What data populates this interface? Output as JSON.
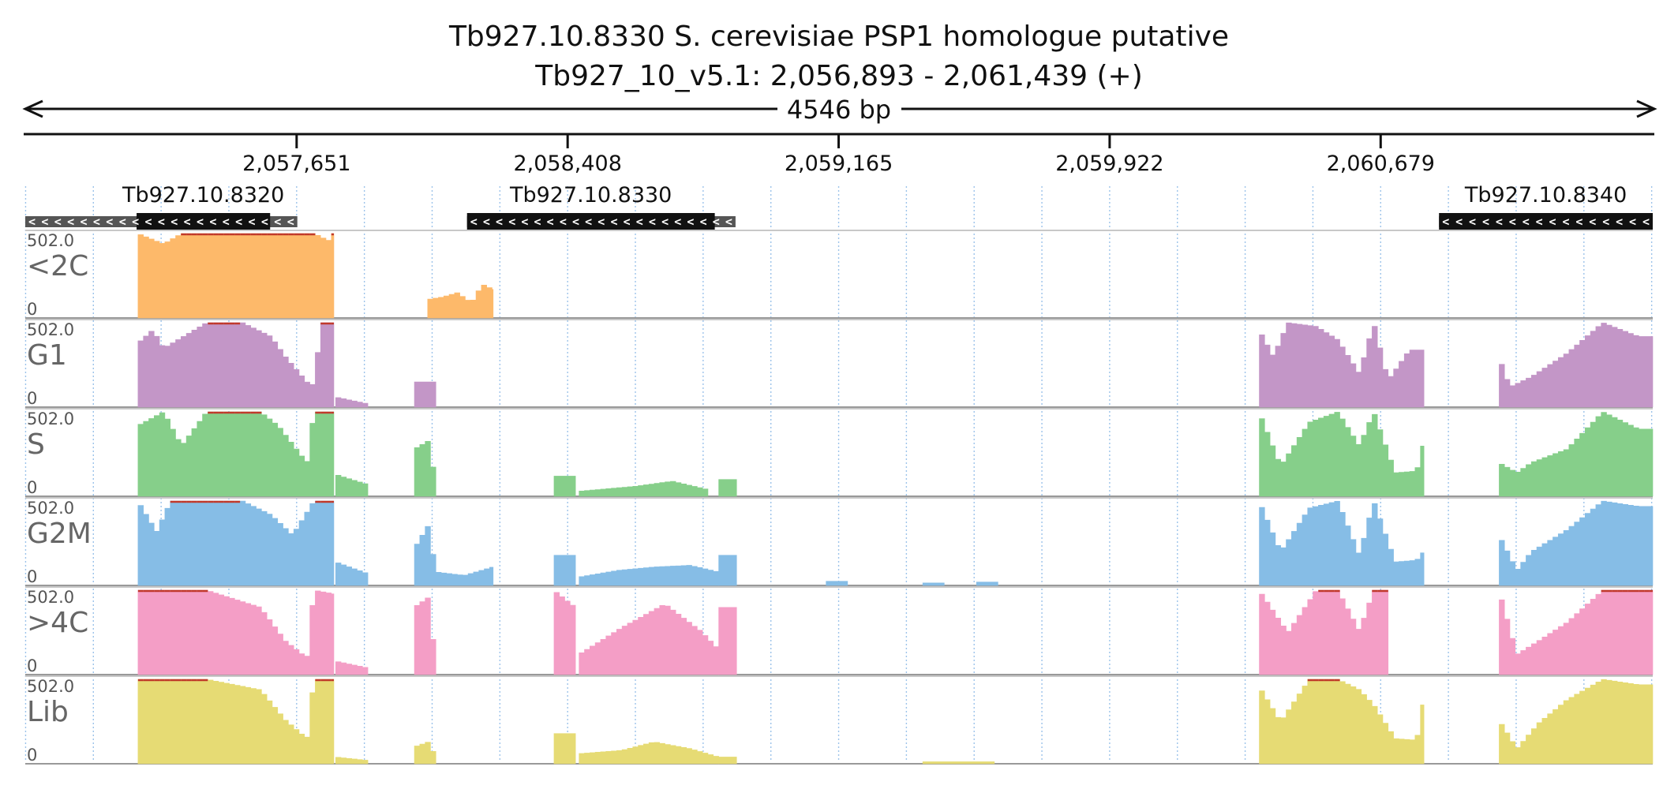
{
  "chart_data": {
    "type": "area",
    "title": "Tb927.10.8330  S. cerevisiae PSP1 homologue  putative",
    "subtitle": "Tb927_10_v5.1: 2,056,893 - 2,061,439 (+)",
    "span_label": "4546 bp",
    "xlim": [
      2056893,
      2061439
    ],
    "x_ticks": [
      {
        "value": 2057651,
        "label": "2,057,651"
      },
      {
        "value": 2058408,
        "label": "2,058,408"
      },
      {
        "value": 2059165,
        "label": "2,059,165"
      },
      {
        "value": 2059922,
        "label": "2,059,922"
      },
      {
        "value": 2060679,
        "label": "2,060,679"
      }
    ],
    "genes": [
      {
        "name": "Tb927.10.8320",
        "start": 2056893,
        "end": 2057653,
        "thick_start": 2057204,
        "thick_end": 2057577,
        "strand": "-"
      },
      {
        "name": "Tb927.10.8330",
        "start": 2058127,
        "end": 2058877,
        "thick_start": 2058127,
        "thick_end": 2058819,
        "strand": "-"
      },
      {
        "name": "Tb927.10.8340",
        "start": 2060842,
        "end": 2061439,
        "thick_start": 2060842,
        "thick_end": 2061439,
        "strand": "-"
      }
    ],
    "ylim": [
      0,
      502.0
    ],
    "ymax_label": "502.0",
    "ymin_label": "0",
    "bin_size": 15,
    "grid": true,
    "series": [
      {
        "name": "<2C",
        "color": "#fdb96a",
        "segments": [
          {
            "x": [
              2057208,
              2057280,
              2057330,
              2057400,
              2057500,
              2057600,
              2057700,
              2057740,
              2057750,
              2057755
            ],
            "y": [
              502,
              440,
              502,
              502,
              502,
              502,
              502,
              460,
              502,
              502
            ]
          },
          {
            "x": [
              2058017,
              2058060,
              2058100,
              2058140,
              2058170,
              2058200
            ],
            "y": [
              110,
              125,
              150,
              90,
              200,
              170
            ]
          }
        ]
      },
      {
        "name": "G1",
        "color": "#c396c7",
        "segments": [
          {
            "x": [
              2057208,
              2057250,
              2057280,
              2057400,
              2057500,
              2057580,
              2057620,
              2057680,
              2057700,
              2057720,
              2057755
            ],
            "y": [
              380,
              460,
              350,
              502,
              502,
              420,
              300,
              150,
              130,
              502,
              502
            ]
          },
          {
            "x": [
              2057760,
              2057850
            ],
            "y": [
              60,
              20
            ]
          },
          {
            "x": [
              2057980,
              2058040
            ],
            "y": [
              150,
              150
            ]
          },
          {
            "x": [
              2060340,
              2060380,
              2060420,
              2060500,
              2060560,
              2060620,
              2060660,
              2060700,
              2060760,
              2060800
            ],
            "y": [
              460,
              300,
              502,
              480,
              400,
              200,
              502,
              160,
              340,
              340
            ]
          },
          {
            "x": [
              2061010,
              2061040,
              2061100,
              2061200,
              2061300,
              2061400,
              2061439
            ],
            "y": [
              300,
              120,
              180,
              320,
              502,
              420,
              420
            ]
          }
        ]
      },
      {
        "name": "S",
        "color": "#86cf8a",
        "segments": [
          {
            "x": [
              2057208,
              2057280,
              2057330,
              2057400,
              2057500,
              2057550,
              2057600,
              2057680,
              2057700,
              2057755
            ],
            "y": [
              420,
              502,
              300,
              502,
              502,
              502,
              420,
              200,
              502,
              502
            ]
          },
          {
            "x": [
              2057760,
              2057850
            ],
            "y": [
              130,
              70
            ]
          },
          {
            "x": [
              2057980,
              2058020,
              2058040
            ],
            "y": [
              280,
              330,
              80
            ]
          },
          {
            "x": [
              2058370,
              2058430
            ],
            "y": [
              120,
              120
            ]
          },
          {
            "x": [
              2058440,
              2058600,
              2058700,
              2058800
            ],
            "y": [
              30,
              60,
              90,
              40
            ]
          },
          {
            "x": [
              2058830,
              2058880
            ],
            "y": [
              100,
              100
            ]
          },
          {
            "x": [
              2060340,
              2060400,
              2060480,
              2060560,
              2060620,
              2060660,
              2060720,
              2060780,
              2060800
            ],
            "y": [
              502,
              180,
              440,
              502,
              300,
              502,
              140,
              150,
              320
            ]
          },
          {
            "x": [
              2061010,
              2061060,
              2061100,
              2061200,
              2061300,
              2061400,
              2061439
            ],
            "y": [
              200,
              140,
              200,
              280,
              502,
              400,
              400
            ]
          }
        ]
      },
      {
        "name": "G2M",
        "color": "#86bde6",
        "segments": [
          {
            "x": [
              2057208,
              2057260,
              2057300,
              2057400,
              2057500,
              2057580,
              2057640,
              2057700,
              2057755
            ],
            "y": [
              502,
              320,
              502,
              502,
              502,
              420,
              300,
              502,
              502
            ]
          },
          {
            "x": [
              2057760,
              2057850
            ],
            "y": [
              140,
              70
            ]
          },
          {
            "x": [
              2057980,
              2058020,
              2058040,
              2058120,
              2058200
            ],
            "y": [
              220,
              360,
              80,
              60,
              110
            ]
          },
          {
            "x": [
              2058370,
              2058430
            ],
            "y": [
              180,
              180
            ]
          },
          {
            "x": [
              2058440,
              2058550,
              2058650,
              2058750,
              2058830
            ],
            "y": [
              50,
              90,
              110,
              120,
              80
            ]
          },
          {
            "x": [
              2058830,
              2058880
            ],
            "y": [
              180,
              180
            ]
          },
          {
            "x": [
              2059130,
              2059190
            ],
            "y": [
              25,
              25
            ]
          },
          {
            "x": [
              2059400,
              2059460
            ],
            "y": [
              15,
              15
            ]
          },
          {
            "x": [
              2059550,
              2059610
            ],
            "y": [
              20,
              20
            ]
          },
          {
            "x": [
              2060340,
              2060400,
              2060480,
              2060560,
              2060620,
              2060660,
              2060720,
              2060780,
              2060800
            ],
            "y": [
              502,
              200,
              460,
              502,
              180,
              502,
              140,
              150,
              200
            ]
          },
          {
            "x": [
              2061010,
              2061060,
              2061100,
              2061200,
              2061300,
              2061400,
              2061439
            ],
            "y": [
              300,
              90,
              200,
              330,
              502,
              470,
              470
            ]
          }
        ]
      },
      {
        "name": ">4C",
        "color": "#f49ec6",
        "segments": [
          {
            "x": [
              2057208,
              2057400,
              2057550,
              2057620,
              2057680,
              2057700,
              2057755
            ],
            "y": [
              502,
              502,
              400,
              200,
              100,
              502,
              480
            ]
          },
          {
            "x": [
              2057760,
              2057850
            ],
            "y": [
              80,
              40
            ]
          },
          {
            "x": [
              2057980,
              2058020,
              2058040
            ],
            "y": [
              400,
              460,
              60
            ]
          },
          {
            "x": [
              2058370,
              2058400,
              2058430
            ],
            "y": [
              502,
              450,
              400
            ]
          },
          {
            "x": [
              2058440,
              2058560,
              2058680,
              2058780,
              2058830
            ],
            "y": [
              120,
              280,
              420,
              260,
              150
            ]
          },
          {
            "x": [
              2058830,
              2058880
            ],
            "y": [
              400,
              400
            ]
          },
          {
            "x": [
              2060340,
              2060420,
              2060500,
              2060560,
              2060620,
              2060660,
              2060700
            ],
            "y": [
              502,
              250,
              502,
              502,
              260,
              502,
              502
            ]
          },
          {
            "x": [
              2061010,
              2061060,
              2061120,
              2061200,
              2061300,
              2061400,
              2061439
            ],
            "y": [
              502,
              120,
              200,
              310,
              502,
              502,
              502
            ]
          }
        ]
      },
      {
        "name": "Lib",
        "color": "#e6db74",
        "segments": [
          {
            "x": [
              2057208,
              2057400,
              2057550,
              2057620,
              2057680,
              2057700,
              2057755
            ],
            "y": [
              502,
              502,
              440,
              260,
              150,
              502,
              502
            ]
          },
          {
            "x": [
              2057760,
              2057850
            ],
            "y": [
              40,
              20
            ]
          },
          {
            "x": [
              2057980,
              2058020,
              2058040
            ],
            "y": [
              100,
              130,
              40
            ]
          },
          {
            "x": [
              2058370,
              2058430
            ],
            "y": [
              180,
              180
            ]
          },
          {
            "x": [
              2058440,
              2058560,
              2058650,
              2058750,
              2058830
            ],
            "y": [
              60,
              80,
              130,
              90,
              40
            ]
          },
          {
            "x": [
              2058830,
              2058880
            ],
            "y": [
              40,
              40
            ]
          },
          {
            "x": [
              2059400,
              2059600
            ],
            "y": [
              12,
              12
            ]
          },
          {
            "x": [
              2060340,
              2060400,
              2060480,
              2060560,
              2060620,
              2060660,
              2060720,
              2060780,
              2060800
            ],
            "y": [
              460,
              250,
              502,
              502,
              440,
              350,
              150,
              140,
              380
            ]
          },
          {
            "x": [
              2061010,
              2061060,
              2061120,
              2061200,
              2061300,
              2061400,
              2061439
            ],
            "y": [
              260,
              90,
              240,
              380,
              502,
              470,
              470
            ]
          }
        ]
      }
    ]
  }
}
